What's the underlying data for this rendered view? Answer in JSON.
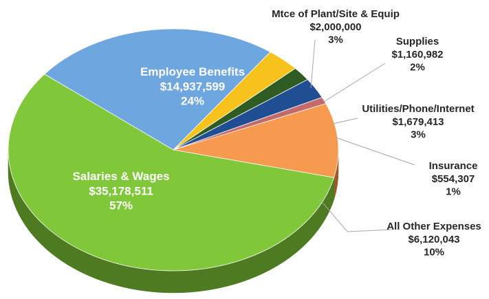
{
  "chart_data": {
    "type": "pie",
    "title": "",
    "slices": [
      {
        "label": "Salaries & Wages",
        "value": 35178511,
        "value_text": "$35,178,511",
        "percent": "57%",
        "color": "#80C83A",
        "side_color": "#4E7A22",
        "label_placement": "inside",
        "label_color": "#ffffff"
      },
      {
        "label": "Employee Benefits",
        "value": 14937599,
        "value_text": "$14,937,599",
        "percent": "24%",
        "color": "#6EA7E0",
        "side_color": "#3E6E9C",
        "label_placement": "inside",
        "label_color": "#ffffff"
      },
      {
        "label": "Mtce of Plant/Site & Equip",
        "value": 2000000,
        "value_text": "$2,000,000",
        "percent": "3%",
        "color": "#F7C21C",
        "side_color": "#A27E10",
        "label_placement": "outside",
        "label_color": "#262626"
      },
      {
        "label": "Supplies",
        "value": 1160982,
        "value_text": "$1,160,982",
        "percent": "2%",
        "color": "#2F5C23",
        "side_color": "#1D3A16",
        "label_placement": "outside",
        "label_color": "#262626"
      },
      {
        "label": "Utilities/Phone/Internet",
        "value": 1679413,
        "value_text": "$1,679,413",
        "percent": "3%",
        "color": "#1F4E92",
        "side_color": "#13315C",
        "label_placement": "outside",
        "label_color": "#262626"
      },
      {
        "label": "Insurance",
        "value": 554307,
        "value_text": "$554,307",
        "percent": "1%",
        "color": "#C46A6A",
        "side_color": "#7E3F3F",
        "label_placement": "outside",
        "label_color": "#262626"
      },
      {
        "label": "All Other Expenses",
        "value": 6120043,
        "value_text": "$6,120,043",
        "percent": "10%",
        "color": "#F59A4E",
        "side_color": "#9E5A25",
        "label_placement": "outside",
        "label_color": "#262626"
      }
    ],
    "legend": "none",
    "style": "3d-pie"
  }
}
